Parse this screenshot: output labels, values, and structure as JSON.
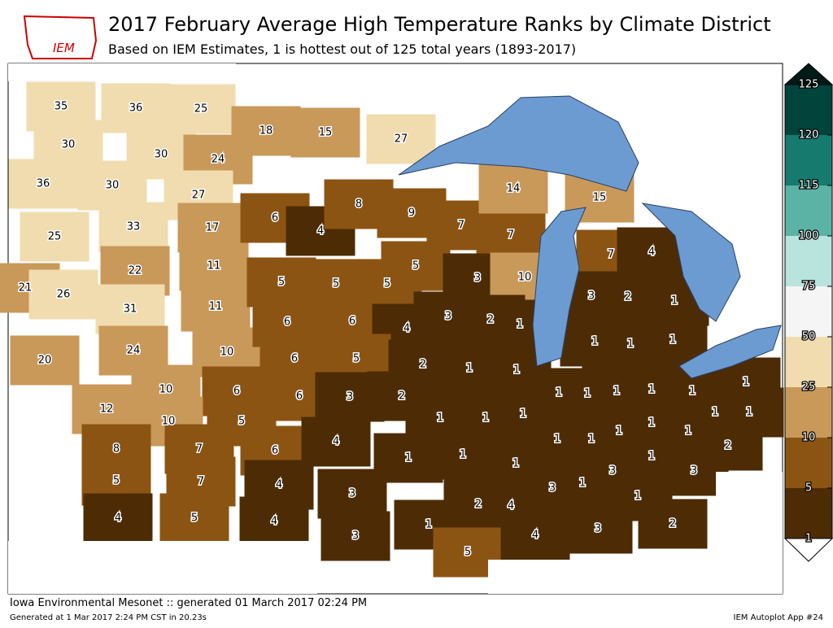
{
  "header": {
    "title": "2017 February Average High Temperature Ranks by Climate District",
    "subtitle": "Based on IEM Estimates, 1 is hottest out of 125 total years (1893-2017)",
    "logo": "IEM"
  },
  "map": {
    "districts": [
      35,
      36,
      25,
      30,
      30,
      24,
      36,
      30,
      27,
      25,
      33,
      17,
      22,
      11,
      21,
      26,
      31,
      11,
      20,
      24,
      10,
      10,
      6,
      12,
      10,
      5,
      8,
      7,
      6,
      5,
      7,
      4,
      4,
      5,
      4,
      18,
      15,
      27,
      6,
      4,
      8,
      5,
      5,
      5,
      9,
      7,
      7,
      5,
      3,
      10,
      6,
      6,
      4,
      6,
      5,
      2,
      6,
      3,
      2,
      14,
      15,
      7,
      4,
      3,
      2,
      1,
      1,
      1,
      1,
      3,
      2,
      1,
      1,
      1,
      1,
      1,
      1,
      1,
      1,
      2,
      4,
      4,
      1,
      3,
      1,
      3,
      5,
      1,
      1,
      1,
      1,
      1,
      1,
      3,
      1,
      3,
      1,
      1,
      1,
      1,
      1,
      1,
      1,
      2,
      1,
      3,
      1,
      2,
      3,
      4
    ],
    "colorbar": {
      "levels": [
        1,
        5,
        10,
        25,
        50,
        75,
        100,
        115,
        120,
        125
      ],
      "colors": [
        "#4d2c05",
        "#8c5413",
        "#c9995a",
        "#f0dcae",
        "#f5f5f5",
        "#b9e3dd",
        "#5ab3a5",
        "#167a6e",
        "#00443c"
      ]
    }
  },
  "footer": {
    "left": "Iowa Environmental Mesonet :: generated 01 March 2017 02:24 PM",
    "small": "Generated at 1 Mar 2017 2:24 PM CST in 20.23s",
    "right": "IEM Autoplot App #24"
  }
}
